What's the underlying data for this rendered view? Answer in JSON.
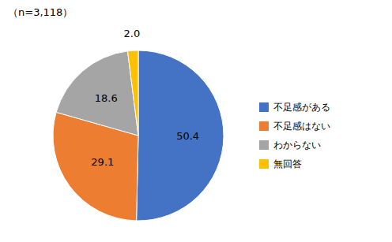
{
  "chart_data": {
    "type": "pie",
    "subtitle": "（n=3,118）",
    "categories": [
      "不足感がある",
      "不足感はない",
      "わからない",
      "無回答"
    ],
    "values": [
      50.4,
      29.1,
      18.6,
      2.0
    ],
    "value_labels": [
      "50.4",
      "29.1",
      "18.6",
      "2.0"
    ],
    "colors": [
      "#4472C4",
      "#ED7D31",
      "#A5A5A5",
      "#FFC000"
    ],
    "data_labels": true,
    "legend": "right"
  }
}
